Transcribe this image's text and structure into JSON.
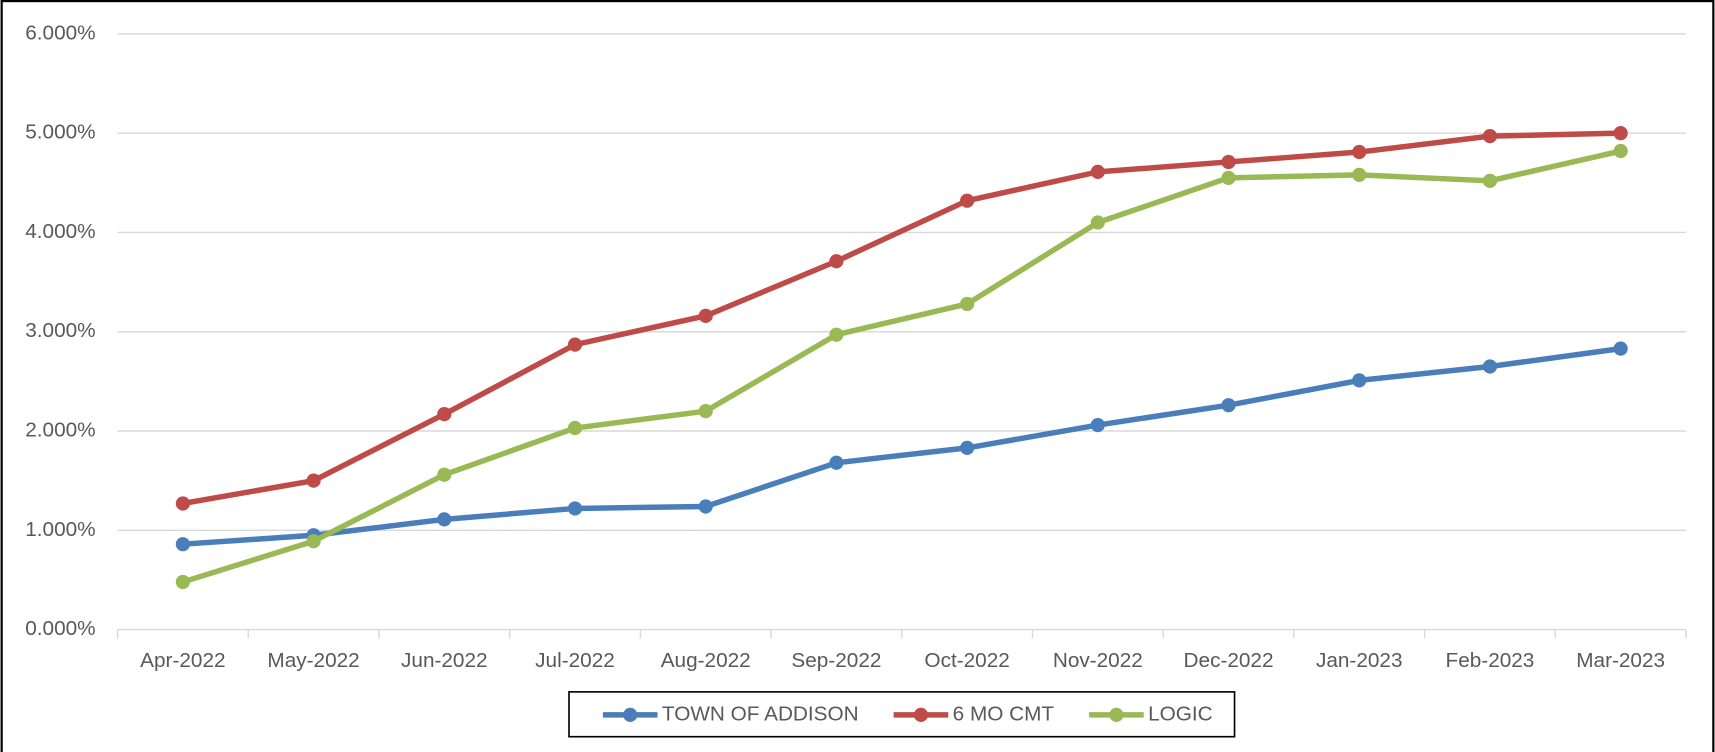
{
  "chart_data": {
    "type": "line",
    "categories": [
      "Apr-2022",
      "May-2022",
      "Jun-2022",
      "Jul-2022",
      "Aug-2022",
      "Sep-2022",
      "Oct-2022",
      "Nov-2022",
      "Dec-2022",
      "Jan-2023",
      "Feb-2023",
      "Mar-2023"
    ],
    "series": [
      {
        "name": "TOWN OF ADDISON",
        "color": "#4a7ebb",
        "values": [
          0.86,
          0.95,
          1.11,
          1.22,
          1.24,
          1.68,
          1.83,
          2.06,
          2.26,
          2.51,
          2.65,
          2.83
        ]
      },
      {
        "name": "6 MO CMT",
        "color": "#be4b48",
        "values": [
          1.27,
          1.5,
          2.17,
          2.87,
          3.16,
          3.71,
          4.32,
          4.61,
          4.71,
          4.81,
          4.97,
          5.0
        ]
      },
      {
        "name": "LOGIC",
        "color": "#98b954",
        "values": [
          0.48,
          0.89,
          1.56,
          2.03,
          2.2,
          2.97,
          3.28,
          4.1,
          4.55,
          4.58,
          4.52,
          4.82
        ]
      }
    ],
    "ylim": [
      0,
      6
    ],
    "yticks": [
      {
        "value": 0,
        "label": "0.000%"
      },
      {
        "value": 1,
        "label": "1.000%"
      },
      {
        "value": 2,
        "label": "2.000%"
      },
      {
        "value": 3,
        "label": "3.000%"
      },
      {
        "value": 4,
        "label": "4.000%"
      },
      {
        "value": 5,
        "label": "5.000%"
      },
      {
        "value": 6,
        "label": "6.000%"
      }
    ],
    "grid": true,
    "legend": "bottom"
  }
}
